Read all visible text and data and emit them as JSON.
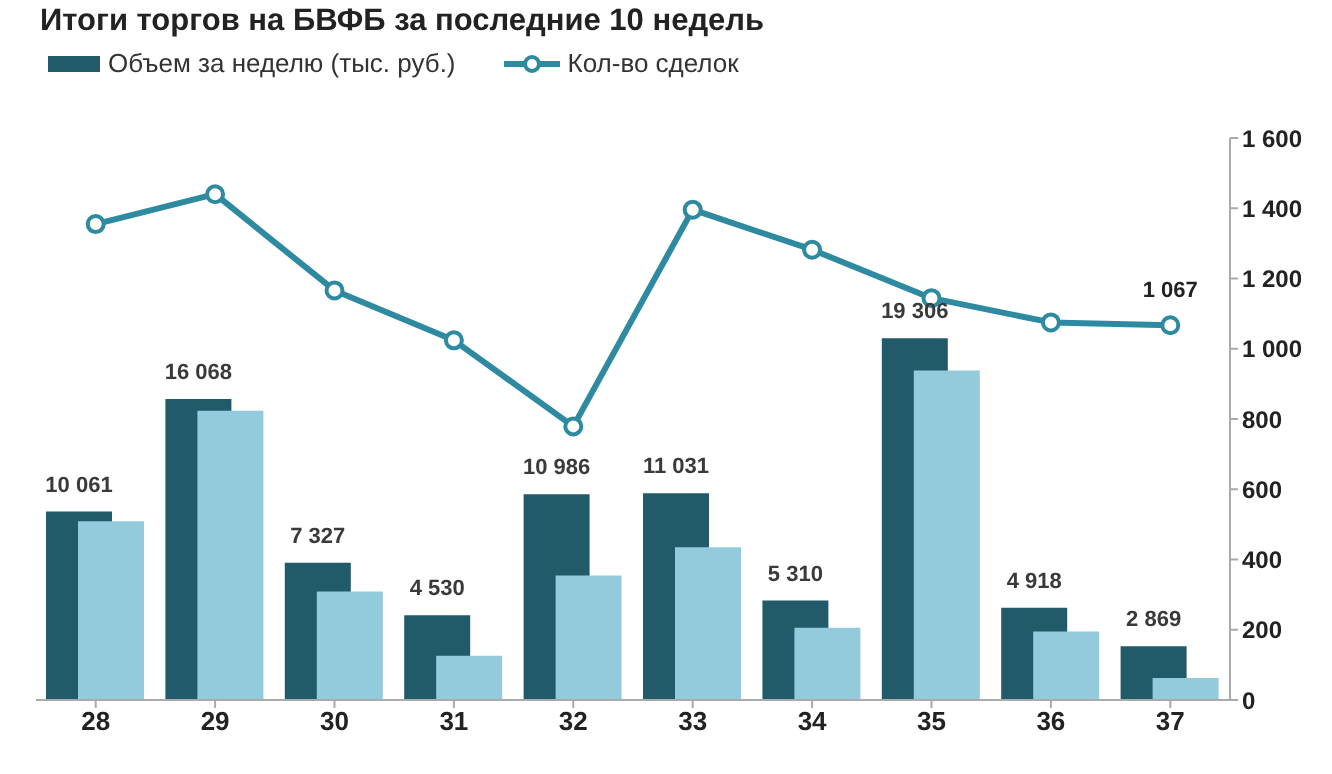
{
  "chart_data": {
    "type": "bar",
    "title": "Итоги торгов на БВФБ за последние 10 недель",
    "categories": [
      "28",
      "29",
      "30",
      "31",
      "32",
      "33",
      "34",
      "35",
      "36",
      "37"
    ],
    "series": [
      {
        "name": "Объем за неделю (тыс. руб.)",
        "color": "#215a69",
        "values": [
          10061,
          16068,
          7327,
          4530,
          10986,
          11031,
          5310,
          19306,
          4918,
          2869
        ],
        "value_labels": [
          "10 061",
          "16 068",
          "7 327",
          "4 530",
          "10 986",
          "11 031",
          "5 310",
          "19 306",
          "4 918",
          "2 869"
        ]
      },
      {
        "color": "#93cbdc",
        "values": [
          9540,
          15440,
          5790,
          2360,
          6650,
          8150,
          3860,
          17590,
          3650,
          1180
        ]
      },
      {
        "name": "Кол-во сделок",
        "type": "line",
        "axis": "y2",
        "color": "#2e8aa0",
        "marker": "circle",
        "values": [
          1355,
          1440,
          1166,
          1024,
          779,
          1396,
          1282,
          1144,
          1075,
          1067
        ],
        "value_labels": [
          null,
          null,
          null,
          null,
          null,
          null,
          null,
          null,
          null,
          "1 067"
        ]
      }
    ],
    "ylim": [
      0,
      30000
    ],
    "y2lim": [
      0,
      1600
    ],
    "y2ticks": [
      0,
      200,
      400,
      600,
      800,
      {
        "value": 1000,
        "label": "1 000"
      },
      {
        "value": 1200,
        "label": "1 200"
      },
      {
        "value": 1400,
        "label": "1 400"
      },
      {
        "value": 1600,
        "label": "1 600"
      }
    ],
    "legend": "top left",
    "grid": false
  }
}
